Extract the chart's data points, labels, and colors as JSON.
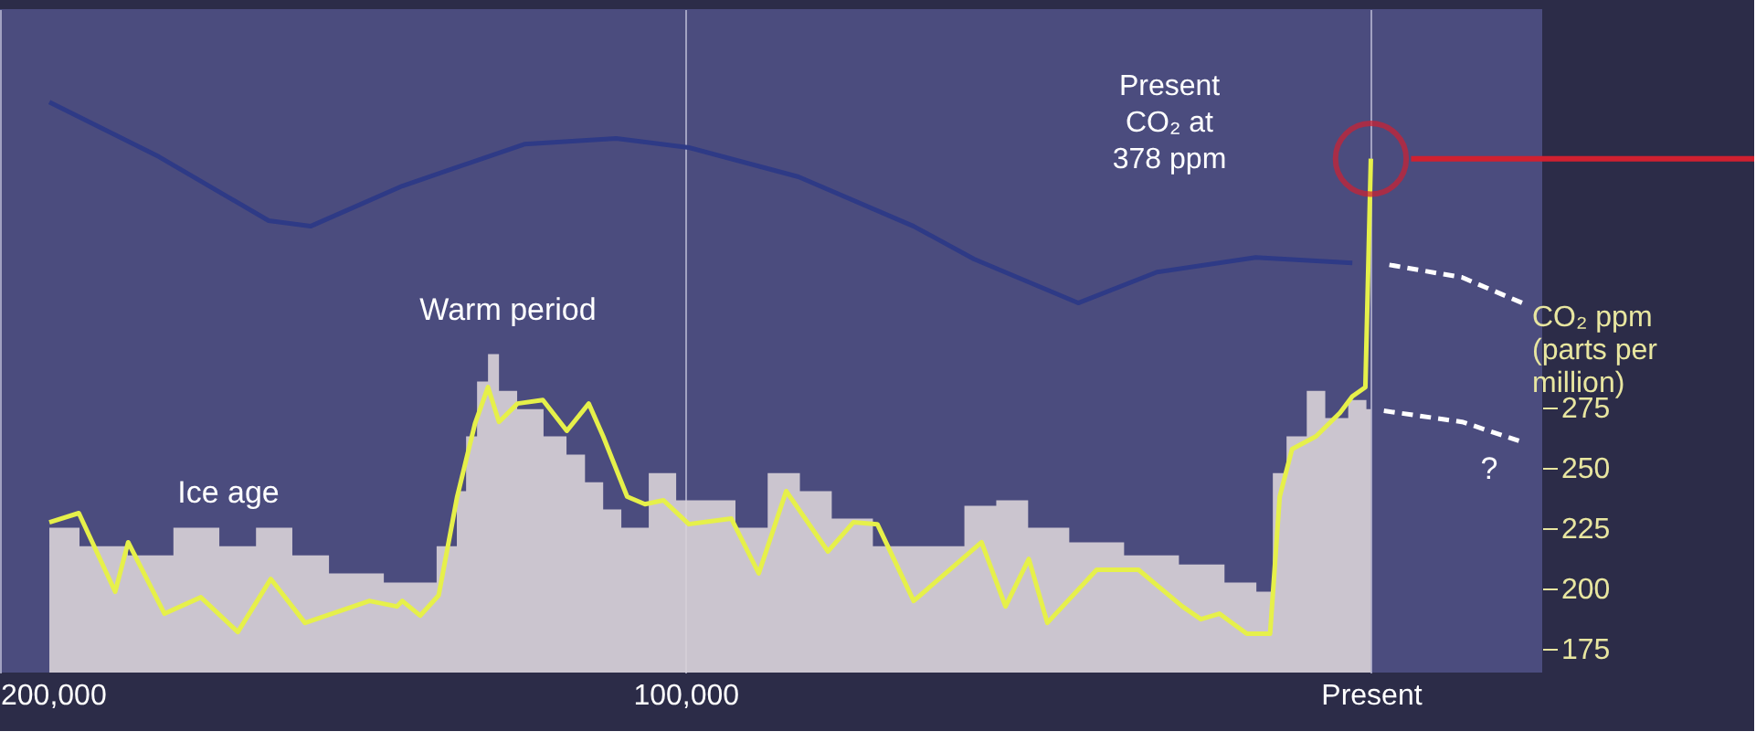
{
  "chart_data": {
    "type": "line",
    "ylabel": "CO₂ ppm (parts per million)",
    "xlim": [
      200000,
      -25000
    ],
    "xticks": [
      {
        "value": 200000,
        "label": "200,000"
      },
      {
        "value": 100000,
        "label": "100,000"
      },
      {
        "value": 0,
        "label": "Present"
      }
    ],
    "ylim": [
      165,
      440
    ],
    "yticks": [
      175,
      200,
      225,
      250,
      275
    ],
    "grid": "x",
    "marker": "none",
    "ref_lines": [
      {
        "axis": "y",
        "value": 378,
        "color": "#d02030"
      }
    ],
    "series": [
      {
        "color": "#2e3a86",
        "x": [
          192800,
          176800,
          160800,
          154700,
          141300,
          123500,
          110100,
          99500,
          83500,
          66700,
          57900,
          42700,
          31200,
          16800,
          2700
        ],
        "values": [
          401.5,
          378.8,
          352.3,
          350,
          366.7,
          384,
          386.4,
          382.6,
          370.5,
          350,
          336.4,
          318.2,
          331,
          337.1,
          334.8
        ]
      },
      {
        "type": "area",
        "color": "#d9d3d8",
        "x": [
          192800,
          184000,
          178700,
          170700,
          165300,
          160000,
          154700,
          149300,
          138700,
          133900,
          132800,
          131200,
          129600,
          128000,
          126400,
          122700,
          118700,
          116000,
          113300,
          110700,
          108000,
          102700,
          100000,
          94700,
          90700,
          85300,
          81300,
          76000,
          69300,
          61300,
          57300,
          52000,
          48000,
          40000,
          32000,
          24000,
          18700,
          14700,
          13900,
          10700,
          8000,
          5300,
          1300,
          0
        ],
        "values": [
          225,
          217.4,
          213.6,
          225,
          217.4,
          225,
          213.6,
          206.1,
          202.3,
          217.4,
          240.2,
          262.9,
          285.6,
          297,
          281.8,
          274.2,
          262.9,
          255.3,
          243.9,
          232.6,
          225,
          247.7,
          236.4,
          236.4,
          225,
          247.7,
          240.2,
          228.8,
          217.4,
          217.4,
          234.1,
          236.4,
          225,
          219,
          213.6,
          209.8,
          202.3,
          198.5,
          247.7,
          262.9,
          281.8,
          270.5,
          278,
          274.2
        ]
      },
      {
        "color": "#e6f04a",
        "x": [
          192800,
          188500,
          183200,
          181300,
          176000,
          170700,
          165300,
          160500,
          155500,
          146100,
          142100,
          141300,
          138700,
          136000,
          133300,
          130700,
          128800,
          127200,
          124500,
          120800,
          117300,
          114100,
          112000,
          108500,
          105900,
          103200,
          99500,
          93300,
          89300,
          85300,
          79200,
          75500,
          72000,
          66700,
          56800,
          53300,
          49900,
          47200,
          40000,
          33900,
          27500,
          24800,
          22100,
          18100,
          14700,
          13300,
          11500,
          8000,
          4500,
          2700,
          800,
          0
        ],
        "values": [
          227.3,
          231.1,
          198.5,
          219,
          189.4,
          196.2,
          181.8,
          203.8,
          185.6,
          194.7,
          192.4,
          194.7,
          188.6,
          197,
          237.9,
          268.2,
          283.3,
          268.9,
          276.5,
          278,
          265.2,
          276.5,
          262.9,
          237.9,
          234.8,
          236.4,
          226.5,
          228.8,
          206.1,
          240.2,
          215.2,
          227.3,
          226.5,
          194.7,
          219,
          192.4,
          212.1,
          185.6,
          207.6,
          207.6,
          192.4,
          187.1,
          189.4,
          181.1,
          181.1,
          237.9,
          257.6,
          262.9,
          272.7,
          279.5,
          283.3,
          378
        ]
      },
      {
        "color": "#ffffff",
        "line_style": "dashed",
        "x": [
          -2700,
          -13300,
          -22100
        ],
        "values": [
          334,
          328.8,
          318.2
        ]
      },
      {
        "color": "#ffffff",
        "line_style": "dashed",
        "x": [
          -1900,
          -13300,
          -22100
        ],
        "values": [
          273.5,
          268.9,
          260.6
        ]
      }
    ],
    "annotations": [
      "Warm period",
      "Ice age",
      "Present CO₂ at 378 ppm",
      "?"
    ]
  }
}
